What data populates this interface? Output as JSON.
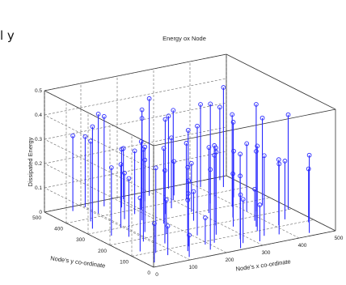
{
  "page": {
    "fragment_left": "l y"
  },
  "chart_data": {
    "type": "stem3d",
    "title": "Energy ox Node",
    "xlabel": "Node's x co-ordinate",
    "ylabel": "Node's y co-ordinate",
    "zlabel": "Dissipated Energy",
    "xlim": [
      0,
      500
    ],
    "ylim": [
      0,
      500
    ],
    "zlim": [
      0,
      0.5
    ],
    "x_ticks": [
      "0",
      "100",
      "200",
      "300",
      "400",
      "500"
    ],
    "y_ticks": [
      "0",
      "100",
      "200",
      "300",
      "400",
      "500"
    ],
    "z_ticks": [
      "0",
      "0.1",
      "0.2",
      "0.3",
      "0.4",
      "0.5"
    ],
    "grid": true,
    "series_color": "#2a2aff",
    "points": [
      [
        20,
        30,
        0.16
      ],
      [
        35,
        120,
        0.22
      ],
      [
        40,
        260,
        0.28
      ],
      [
        55,
        380,
        0.33
      ],
      [
        60,
        470,
        0.31
      ],
      [
        75,
        60,
        0.12
      ],
      [
        80,
        180,
        0.38
      ],
      [
        90,
        300,
        0.26
      ],
      [
        100,
        420,
        0.41
      ],
      [
        110,
        20,
        0.09
      ],
      [
        115,
        140,
        0.3
      ],
      [
        120,
        240,
        0.35
      ],
      [
        130,
        350,
        0.19
      ],
      [
        140,
        460,
        0.37
      ],
      [
        150,
        90,
        0.27
      ],
      [
        155,
        200,
        0.14
      ],
      [
        160,
        320,
        0.42
      ],
      [
        170,
        430,
        0.24
      ],
      [
        180,
        40,
        0.33
      ],
      [
        185,
        150,
        0.18
      ],
      [
        190,
        270,
        0.31
      ],
      [
        200,
        390,
        0.28
      ],
      [
        205,
        480,
        0.21
      ],
      [
        215,
        80,
        0.36
      ],
      [
        220,
        210,
        0.25
      ],
      [
        230,
        330,
        0.39
      ],
      [
        240,
        440,
        0.17
      ],
      [
        245,
        10,
        0.22
      ],
      [
        250,
        130,
        0.34
      ],
      [
        260,
        250,
        0.12
      ],
      [
        265,
        360,
        0.29
      ],
      [
        270,
        470,
        0.4
      ],
      [
        280,
        70,
        0.26
      ],
      [
        285,
        190,
        0.32
      ],
      [
        290,
        310,
        0.2
      ],
      [
        300,
        410,
        0.37
      ],
      [
        310,
        30,
        0.15
      ],
      [
        315,
        160,
        0.43
      ],
      [
        320,
        280,
        0.27
      ],
      [
        330,
        400,
        0.23
      ],
      [
        335,
        490,
        0.3
      ],
      [
        345,
        100,
        0.35
      ],
      [
        350,
        220,
        0.18
      ],
      [
        360,
        340,
        0.41
      ],
      [
        365,
        450,
        0.25
      ],
      [
        375,
        50,
        0.29
      ],
      [
        380,
        170,
        0.13
      ],
      [
        390,
        290,
        0.38
      ],
      [
        395,
        380,
        0.21
      ],
      [
        405,
        460,
        0.34
      ],
      [
        410,
        110,
        0.27
      ],
      [
        420,
        230,
        0.44
      ],
      [
        430,
        350,
        0.19
      ],
      [
        440,
        20,
        0.32
      ],
      [
        445,
        140,
        0.24
      ],
      [
        455,
        260,
        0.36
      ],
      [
        460,
        370,
        0.16
      ],
      [
        470,
        480,
        0.3
      ],
      [
        480,
        90,
        0.22
      ],
      [
        490,
        200,
        0.39
      ],
      [
        60,
        90,
        0.35
      ],
      [
        130,
        60,
        0.21
      ],
      [
        210,
        150,
        0.45
      ],
      [
        270,
        40,
        0.18
      ],
      [
        340,
        60,
        0.33
      ],
      [
        400,
        240,
        0.28
      ],
      [
        30,
        330,
        0.42
      ],
      [
        170,
        370,
        0.26
      ],
      [
        250,
        470,
        0.36
      ],
      [
        320,
        440,
        0.14
      ],
      [
        100,
        480,
        0.29
      ],
      [
        450,
        430,
        0.41
      ],
      [
        190,
        80,
        0.11
      ],
      [
        360,
        130,
        0.31
      ],
      [
        70,
        230,
        0.24
      ]
    ]
  }
}
